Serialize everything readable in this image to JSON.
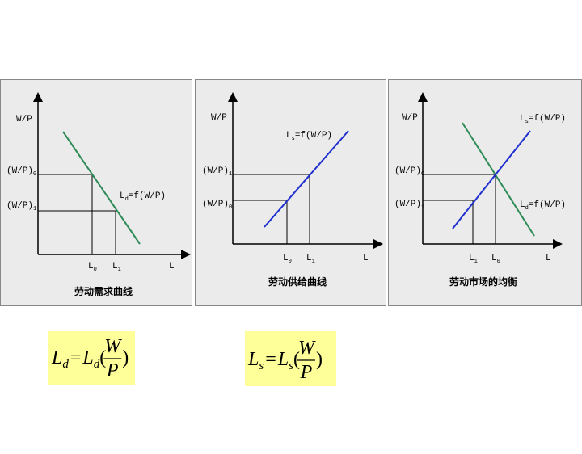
{
  "panels": [
    {
      "y_axis_label": {
        "base": "W/P"
      },
      "y_ticks": [
        {
          "base": "(W/P)",
          "sub": "0"
        },
        {
          "base": "(W/P)",
          "sub": "1"
        }
      ],
      "x_ticks": [
        {
          "base": "L",
          "sub": "0"
        },
        {
          "base": "L",
          "sub": "1"
        }
      ],
      "x_axis_label": {
        "base": "L"
      },
      "curve_labels": [
        {
          "base": "L",
          "sub": "d",
          "rest": "=f(W/P)"
        }
      ],
      "caption": "劳动需求曲线"
    },
    {
      "y_axis_label": {
        "base": "W/P"
      },
      "y_ticks": [
        {
          "base": "(W/P)",
          "sub": "1"
        },
        {
          "base": "(W/P)",
          "sub": "0"
        }
      ],
      "x_ticks": [
        {
          "base": "L",
          "sub": "0"
        },
        {
          "base": "L",
          "sub": "1"
        }
      ],
      "x_axis_label": {
        "base": "L"
      },
      "curve_labels": [
        {
          "base": "L",
          "sub": "s",
          "rest": "=f(W/P)"
        }
      ],
      "caption": "劳动供给曲线"
    },
    {
      "y_axis_label": {
        "base": "W/P"
      },
      "y_ticks": [
        {
          "base": "(W/P)",
          "sub": "0"
        },
        {
          "base": "(W/P)",
          "sub": "1"
        }
      ],
      "x_ticks": [
        {
          "base": "L",
          "sub": "1"
        },
        {
          "base": "L",
          "sub": "0"
        }
      ],
      "x_axis_label": {
        "base": "L"
      },
      "curve_labels": [
        {
          "base": "L",
          "sub": "s",
          "rest": "=f(W/P)"
        },
        {
          "base": "L",
          "sub": "d",
          "rest": "=f(W/P)"
        }
      ],
      "caption": "劳动市场的均衡"
    }
  ],
  "formulas": [
    {
      "lhs": {
        "base": "L",
        "sub": "d"
      },
      "eq": "=",
      "rhs": {
        "base": "L",
        "sub": "d"
      },
      "open": "(",
      "num": "W",
      "den": "P",
      "close": ")"
    },
    {
      "lhs": {
        "base": "L",
        "sub": "s"
      },
      "eq": "=",
      "rhs": {
        "base": "L",
        "sub": "s"
      },
      "open": "(",
      "num": "W",
      "den": "P",
      "close": ")"
    }
  ]
}
